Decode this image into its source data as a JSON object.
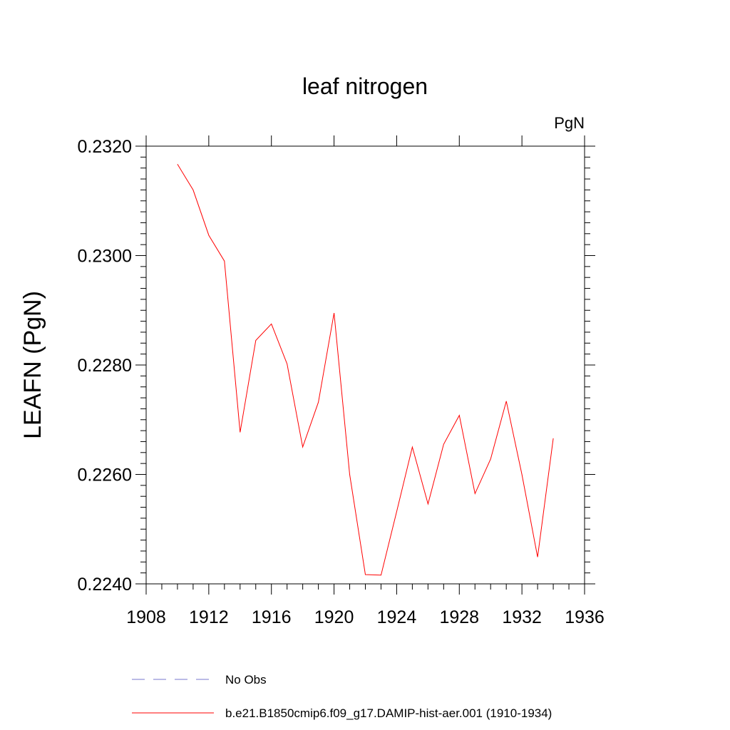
{
  "chart_data": {
    "type": "line",
    "title": "leaf nitrogen",
    "units": "PgN",
    "xlabel": "",
    "ylabel": "LEAFN  (PgN)",
    "xlim": [
      1908,
      1936
    ],
    "ylim": [
      0.224,
      0.232
    ],
    "x_ticks": [
      "1908",
      "1912",
      "1916",
      "1920",
      "1924",
      "1928",
      "1932",
      "1936"
    ],
    "y_ticks": [
      "0.2240",
      "0.2260",
      "0.2280",
      "0.2300",
      "0.2320"
    ],
    "grid": false,
    "series": [
      {
        "name": "b.e21.B1850cmip6.f09_g17.DAMIP-hist-aer.001 (1910-1934)",
        "color": "#ff0000",
        "x": [
          1910,
          1911,
          1912,
          1913,
          1914,
          1915,
          1916,
          1917,
          1918,
          1919,
          1920,
          1921,
          1922,
          1923,
          1924,
          1925,
          1926,
          1927,
          1928,
          1929,
          1930,
          1931,
          1932,
          1933,
          1934
        ],
        "y": [
          0.23167,
          0.2312,
          0.23037,
          0.2299,
          0.22677,
          0.22845,
          0.22875,
          0.22802,
          0.2265,
          0.22732,
          0.22895,
          0.226,
          0.22417,
          0.22416,
          0.22532,
          0.2265,
          0.22546,
          0.22655,
          0.22708,
          0.22565,
          0.22628,
          0.22734,
          0.226,
          0.22449,
          0.22666
        ]
      }
    ],
    "legend": {
      "placement": "bottom",
      "entries": [
        {
          "label": "No Obs",
          "color": "#7777cc",
          "style": "dashed"
        },
        {
          "label": "b.e21.B1850cmip6.f09_g17.DAMIP-hist-aer.001 (1910-1934)",
          "color": "#ff0000",
          "style": "solid"
        }
      ]
    }
  }
}
